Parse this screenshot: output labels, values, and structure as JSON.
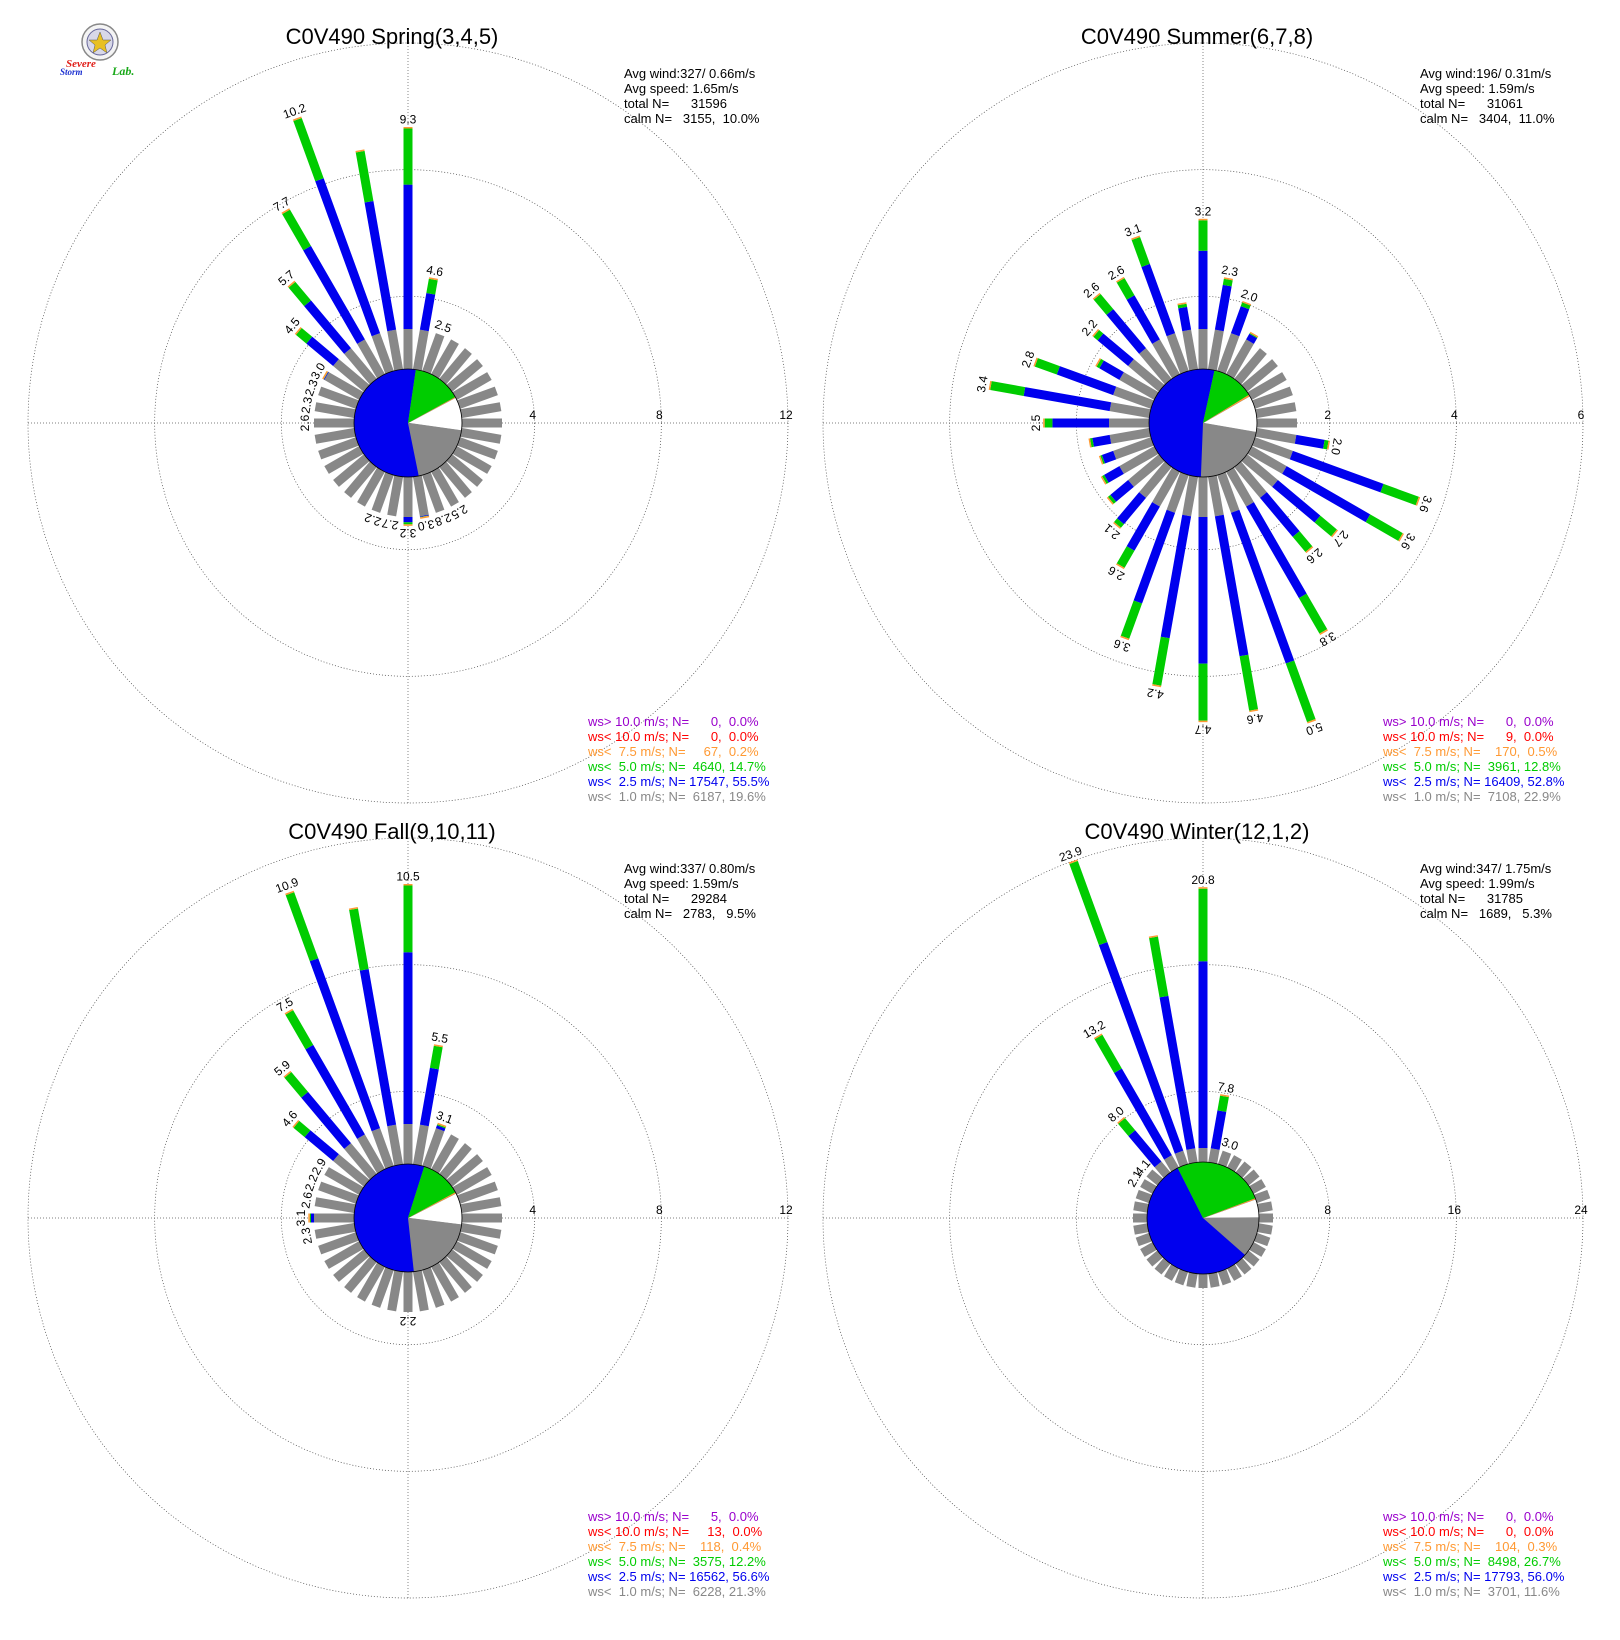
{
  "logo": {
    "word1": "Severe",
    "word2": "Storm",
    "word3": "Lab.",
    "colors": {
      "word1": "#e0201a",
      "word2": "#1a2fd0",
      "word3": "#18a818",
      "seal_ring": "#888888"
    }
  },
  "colors": {
    "gt10": "#9900cc",
    "lt10": "#ff0000",
    "lt7_5": "#ff9933",
    "lt5": "#00cc00",
    "lt2_5": "#0000ee",
    "lt1": "#888888",
    "calm": "#ffffff"
  },
  "chart_data": [
    {
      "type": "windrose",
      "title": "C0V490 Spring(3,4,5)",
      "rings": [
        4,
        8,
        12
      ],
      "stats": [
        "Avg wind:327/ 0.66m/s",
        "Avg speed: 1.65m/s",
        "total N=      31596",
        "calm N=   3155,  10.0%"
      ],
      "legend": [
        {
          "text": "ws> 10.0 m/s; N=      0,  0.0%",
          "color": "gt10"
        },
        {
          "text": "ws< 10.0 m/s; N=      0,  0.0%",
          "color": "lt10"
        },
        {
          "text": "ws<  7.5 m/s; N=     67,  0.2%",
          "color": "lt7_5"
        },
        {
          "text": "ws<  5.0 m/s; N=  4640, 14.7%",
          "color": "lt5"
        },
        {
          "text": "ws<  2.5 m/s; N= 17547, 55.5%",
          "color": "lt2_5"
        },
        {
          "text": "ws<  1.0 m/s; N=  6187, 19.6%",
          "color": "lt1"
        }
      ],
      "pie": [
        [
          "calm",
          10.0
        ],
        [
          "lt1",
          19.6
        ],
        [
          "lt2_5",
          55.5
        ],
        [
          "lt5",
          14.7
        ],
        [
          "lt7_5",
          0.2
        ]
      ],
      "bins": [
        [
          0,
          9.3,
          "9.3"
        ],
        [
          10,
          4.6,
          "4.6"
        ],
        [
          20,
          2.5,
          "2.5"
        ],
        [
          30,
          1.6
        ],
        [
          40,
          1.3
        ],
        [
          50,
          1.1
        ],
        [
          60,
          1.1
        ],
        [
          70,
          1.0
        ],
        [
          80,
          0.95
        ],
        [
          90,
          1.0
        ],
        [
          100,
          1.5
        ],
        [
          110,
          1.8
        ],
        [
          120,
          1.7
        ],
        [
          130,
          1.8
        ],
        [
          140,
          2.0
        ],
        [
          150,
          2.5,
          "2.5"
        ],
        [
          160,
          2.8,
          "2.8"
        ],
        [
          170,
          3.0,
          "3.0"
        ],
        [
          180,
          3.2,
          "3.2"
        ],
        [
          190,
          2.7,
          "2.7"
        ],
        [
          200,
          2.2,
          "2.2"
        ],
        [
          210,
          1.9
        ],
        [
          220,
          1.8
        ],
        [
          230,
          1.7
        ],
        [
          240,
          1.7
        ],
        [
          250,
          1.6
        ],
        [
          260,
          1.6
        ],
        [
          270,
          2.6,
          "2.6"
        ],
        [
          280,
          2.3,
          "2.3"
        ],
        [
          290,
          2.3,
          "2.3"
        ],
        [
          300,
          3.0,
          "3.0"
        ],
        [
          310,
          4.5,
          "4.5"
        ],
        [
          320,
          5.7,
          "5.7"
        ],
        [
          330,
          7.7,
          "7.7"
        ],
        [
          340,
          10.2,
          "10.2"
        ],
        [
          350,
          8.7
        ]
      ]
    },
    {
      "type": "windrose",
      "title": "C0V490 Summer(6,7,8)",
      "rings": [
        2,
        4,
        6
      ],
      "stats": [
        "Avg wind:196/ 0.31m/s",
        "Avg speed: 1.59m/s",
        "total N=      31061",
        "calm N=   3404,  11.0%"
      ],
      "legend": [
        {
          "text": "ws> 10.0 m/s; N=      0,  0.0%",
          "color": "gt10"
        },
        {
          "text": "ws< 10.0 m/s; N=      9,  0.0%",
          "color": "lt10"
        },
        {
          "text": "ws<  7.5 m/s; N=    170,  0.5%",
          "color": "lt7_5"
        },
        {
          "text": "ws<  5.0 m/s; N=  3961, 12.8%",
          "color": "lt5"
        },
        {
          "text": "ws<  2.5 m/s; N= 16409, 52.8%",
          "color": "lt2_5"
        },
        {
          "text": "ws<  1.0 m/s; N=  7108, 22.9%",
          "color": "lt1"
        }
      ],
      "pie": [
        [
          "calm",
          11.0
        ],
        [
          "lt1",
          22.9
        ],
        [
          "lt2_5",
          52.8
        ],
        [
          "lt5",
          12.8
        ],
        [
          "lt7_5",
          0.5
        ]
      ],
      "bins": [
        [
          0,
          3.2,
          "3.2"
        ],
        [
          10,
          2.3,
          "2.3"
        ],
        [
          20,
          2.0,
          "2.0"
        ],
        [
          30,
          1.6
        ],
        [
          40,
          1.4
        ],
        [
          50,
          1.3
        ],
        [
          60,
          1.4
        ],
        [
          70,
          1.2
        ],
        [
          80,
          1.1
        ],
        [
          90,
          0.9
        ],
        [
          100,
          2.0,
          "2.0"
        ],
        [
          110,
          3.6,
          "3.6"
        ],
        [
          120,
          3.6,
          "3.6"
        ],
        [
          130,
          2.7,
          "2.7"
        ],
        [
          140,
          2.6,
          "2.6"
        ],
        [
          150,
          3.8,
          "3.8"
        ],
        [
          160,
          5.0,
          "5.0"
        ],
        [
          170,
          4.6,
          "4.6"
        ],
        [
          180,
          4.7,
          "4.7"
        ],
        [
          190,
          4.2,
          "4.2"
        ],
        [
          200,
          3.6,
          "3.6"
        ],
        [
          210,
          2.6,
          "2.6"
        ],
        [
          220,
          2.1,
          "2.1"
        ],
        [
          230,
          1.9
        ],
        [
          240,
          1.8
        ],
        [
          250,
          1.7
        ],
        [
          260,
          1.8
        ],
        [
          270,
          2.5,
          "2.5"
        ],
        [
          280,
          3.4,
          "3.4"
        ],
        [
          290,
          2.8,
          "2.8"
        ],
        [
          300,
          1.9
        ],
        [
          310,
          2.2,
          "2.2"
        ],
        [
          320,
          2.6,
          "2.6"
        ],
        [
          330,
          2.6,
          "2.6"
        ],
        [
          340,
          3.1,
          "3.1"
        ],
        [
          350,
          1.9
        ]
      ]
    },
    {
      "type": "windrose",
      "title": "C0V490 Fall(9,10,11)",
      "rings": [
        4,
        8,
        12
      ],
      "stats": [
        "Avg wind:337/ 0.80m/s",
        "Avg speed: 1.59m/s",
        "total N=      29284",
        "calm N=   2783,   9.5%"
      ],
      "legend": [
        {
          "text": "ws> 10.0 m/s; N=      5,  0.0%",
          "color": "gt10"
        },
        {
          "text": "ws< 10.0 m/s; N=     13,  0.0%",
          "color": "lt10"
        },
        {
          "text": "ws<  7.5 m/s; N=    118,  0.4%",
          "color": "lt7_5"
        },
        {
          "text": "ws<  5.0 m/s; N=  3575, 12.2%",
          "color": "lt5"
        },
        {
          "text": "ws<  2.5 m/s; N= 16562, 56.6%",
          "color": "lt2_5"
        },
        {
          "text": "ws<  1.0 m/s; N=  6228, 21.3%",
          "color": "lt1"
        }
      ],
      "pie": [
        [
          "calm",
          9.5
        ],
        [
          "lt1",
          21.3
        ],
        [
          "lt2_5",
          56.6
        ],
        [
          "lt5",
          12.2
        ],
        [
          "lt7_5",
          0.4
        ]
      ],
      "bins": [
        [
          0,
          10.5,
          "10.5"
        ],
        [
          10,
          5.5,
          "5.5"
        ],
        [
          20,
          3.1,
          "3.1"
        ],
        [
          30,
          1.9
        ],
        [
          40,
          1.5
        ],
        [
          50,
          1.2
        ],
        [
          60,
          1.0
        ],
        [
          70,
          0.95
        ],
        [
          80,
          0.9
        ],
        [
          90,
          1.2
        ],
        [
          100,
          1.5
        ],
        [
          110,
          1.6
        ],
        [
          120,
          1.7
        ],
        [
          130,
          1.6
        ],
        [
          140,
          1.6
        ],
        [
          150,
          1.7
        ],
        [
          160,
          1.7
        ],
        [
          170,
          1.9
        ],
        [
          180,
          2.2,
          "2.2"
        ],
        [
          190,
          1.9
        ],
        [
          200,
          1.8
        ],
        [
          210,
          1.8
        ],
        [
          220,
          1.7
        ],
        [
          230,
          1.6
        ],
        [
          240,
          1.5
        ],
        [
          250,
          1.6
        ],
        [
          260,
          2.3,
          "2.3"
        ],
        [
          270,
          3.1,
          "3.1"
        ],
        [
          280,
          2.6,
          "2.6"
        ],
        [
          290,
          2.2,
          "2.2"
        ],
        [
          300,
          2.9,
          "2.9"
        ],
        [
          310,
          4.6,
          "4.6"
        ],
        [
          320,
          5.9,
          "5.9"
        ],
        [
          330,
          7.5,
          "7.5"
        ],
        [
          340,
          10.9,
          "10.9"
        ],
        [
          350,
          9.9
        ]
      ]
    },
    {
      "type": "windrose",
      "title": "C0V490 Winter(12,1,2)",
      "rings": [
        8,
        16,
        24
      ],
      "stats": [
        "Avg wind:347/ 1.75m/s",
        "Avg speed: 1.99m/s",
        "total N=      31785",
        "calm N=   1689,   5.3%"
      ],
      "legend": [
        {
          "text": "ws> 10.0 m/s; N=      0,  0.0%",
          "color": "gt10"
        },
        {
          "text": "ws< 10.0 m/s; N=      0,  0.0%",
          "color": "lt10"
        },
        {
          "text": "ws<  7.5 m/s; N=    104,  0.3%",
          "color": "lt7_5"
        },
        {
          "text": "ws<  5.0 m/s; N=  8498, 26.7%",
          "color": "lt5"
        },
        {
          "text": "ws<  2.5 m/s; N= 17793, 56.0%",
          "color": "lt2_5"
        },
        {
          "text": "ws<  1.0 m/s; N=  3701, 11.6%",
          "color": "lt1"
        }
      ],
      "pie": [
        [
          "calm",
          5.3
        ],
        [
          "lt1",
          11.6
        ],
        [
          "lt2_5",
          56.0
        ],
        [
          "lt5",
          26.7
        ],
        [
          "lt7_5",
          0.3
        ]
      ],
      "bins": [
        [
          0,
          20.8,
          "20.8"
        ],
        [
          10,
          7.8,
          "7.8"
        ],
        [
          20,
          3.0,
          "3.0"
        ],
        [
          30,
          1.4
        ],
        [
          40,
          1.0
        ],
        [
          50,
          0.7
        ],
        [
          60,
          0.6
        ],
        [
          70,
          0.6
        ],
        [
          80,
          0.6
        ],
        [
          90,
          0.5
        ],
        [
          100,
          0.6
        ],
        [
          110,
          0.6
        ],
        [
          120,
          0.6
        ],
        [
          130,
          0.6
        ],
        [
          140,
          0.6
        ],
        [
          150,
          0.6
        ],
        [
          160,
          0.6
        ],
        [
          170,
          0.6
        ],
        [
          180,
          0.6
        ],
        [
          190,
          0.6
        ],
        [
          200,
          0.6
        ],
        [
          210,
          0.6
        ],
        [
          220,
          0.6
        ],
        [
          230,
          0.6
        ],
        [
          240,
          0.7
        ],
        [
          250,
          0.8
        ],
        [
          260,
          0.9
        ],
        [
          270,
          1.1
        ],
        [
          280,
          1.2
        ],
        [
          290,
          1.4
        ],
        [
          300,
          2.1,
          "2.1"
        ],
        [
          310,
          4.1,
          "4.1"
        ],
        [
          320,
          8.0,
          "8.0"
        ],
        [
          330,
          13.2,
          "13.2"
        ],
        [
          340,
          23.9,
          "23.9"
        ],
        [
          350,
          18.0
        ]
      ]
    }
  ]
}
